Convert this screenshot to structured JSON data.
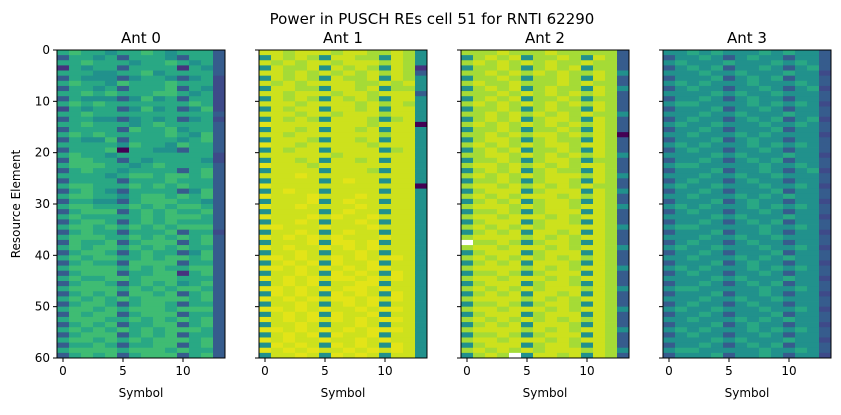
{
  "chart_data": {
    "type": "heatmap",
    "title": "Power in PUSCH REs cell 51 for RNTI 62290",
    "xlabel": "Symbol",
    "ylabel": "Resource Element",
    "x_ticks": [
      0,
      5,
      10
    ],
    "y_ticks": [
      0,
      10,
      20,
      30,
      40,
      50,
      60
    ],
    "xlim": [
      -0.5,
      13.5
    ],
    "ylim": [
      60,
      0
    ],
    "colormap": "viridis",
    "level_colors": [
      "#440154",
      "#46327e",
      "#3e4a89",
      "#365c8d",
      "#21918c",
      "#29a884",
      "#3fbc73",
      "#a5db36",
      "#cde11d",
      "#e3e418"
    ],
    "missing_marker": "x",
    "panels": [
      {
        "title": "Ant 0",
        "rows": [
          "56554556545553",
          "35545355543553",
          "55655545565453",
          "15455355551543",
          "55544556455553",
          "35444345543452",
          "56554655565552",
          "35545355563542",
          "55656555665452",
          "35444346453552",
          "56565555555652",
          "25455346453462",
          "55655555555553",
          "35544345453452",
          "55655545655553",
          "35555365564553",
          "56565555565463",
          "35446355554563",
          "55555465546553",
          "35556055443553",
          "56554555555552",
          "36655354555542",
          "56665545655553",
          "35655455553563",
          "55554566566563",
          "35555355565553",
          "56655565656553",
          "35654355553463",
          "56655456656563",
          "35544356665543",
          "56655565656653",
          "35666356565563",
          "56555556566653",
          "35665356565553",
          "56656565656663",
          "35655355563552",
          "56665565656563",
          "36556356663563",
          "56566565656553",
          "35665356553463",
          "56566556566563",
          "35655366663553",
          "56666565655663",
          "35666355661563",
          "56556656665553",
          "35665356564563",
          "56666565656653",
          "35656366563563",
          "56565656666563",
          "35665356653553",
          "56656566656663",
          "36566356663553",
          "56665565656563",
          "35656355663563",
          "56565656566653",
          "35666356563553",
          "56656565666563",
          "35565355663563",
          "56666566656553",
          "35656356663563"
        ]
      },
      {
        "title": "Ant 1",
        "rows": [
          "88788878877874",
          "48787488774874",
          "87878878887874",
          "48778487874871",
          "88787878787873",
          "48787487784874",
          "87878888778784",
          "48877488784774",
          "88788878878883",
          "48787487874884",
          "88878888787874",
          "48788488784884",
          "88878878887884",
          "48787488874784",
          "98888888878880",
          "48878488784884",
          "88788888887884",
          "48887488784884",
          "98878888878884",
          "48788488884784",
          "88888878888884",
          "48878488784884",
          "98887888888884",
          "48888488874884",
          "88898888888884",
          "48888489884884",
          "98888888888880",
          "48988488884884",
          "98889888988884",
          "48889489884884",
          "98898888988884",
          "48888489884884",
          "98889898898884",
          "48898488984884",
          "99888988898884",
          "48898489884884",
          "98989898889884",
          "48889499894884",
          "98988989898884",
          "48898488984884",
          "99898898989984",
          "48989498894884",
          "99898989899884",
          "48898498984984",
          "98989899898984",
          "48989488994884",
          "99898989989884",
          "49898498984984",
          "98989899898984",
          "48898489894884",
          "99898988989984",
          "48989498894884",
          "98989898989984",
          "48898488984884",
          "99898989899984",
          "48989498894884",
          "98988988989884",
          "49898498984984",
          "98989889898984",
          "48898498984884"
        ]
      },
      {
        "title": "Ant 2",
        "rows": [
          "77787778777773",
          "47878477874873",
          "78787878778773",
          "47787478784773",
          "77878787877874",
          "47787477874873",
          "78778777878773",
          "47878478774874",
          "77787878787873",
          "47878477874773",
          "78787878787873",
          "47787478774873",
          "77878787878774",
          "47878478874873",
          "78787878787873",
          "47787477874873",
          "77878788787870",
          "47887478774873",
          "78787878878873",
          "47878477874873",
          "77887878787874",
          "47787478874773",
          "78878787878873",
          "47878478774873",
          "78787878887874",
          "47787478874873",
          "78878787878773",
          "47888478884874",
          "78787888787873",
          "47878478874873",
          "78887878878874",
          "47787478884873",
          "78878887878873",
          "47888478874873",
          "78787878888874",
          "47878488784873",
          "78888787878873",
          "x7787478874873",
          "78878887878874",
          "47888478884873",
          "78787878787873",
          "47878488874873",
          "78888787878874",
          "47787478884873",
          "78878887878873",
          "47888478874873",
          "78787878887874",
          "47878488784873",
          "78888787878873",
          "47787478874873",
          "78878887878874",
          "47888478884873",
          "78787878787873",
          "47878488874873",
          "78888787878874",
          "47787478884873",
          "78878887878873",
          "47888478874873",
          "78787878887874",
          "4787x488784873"
        ]
      },
      {
        "title": "Ant 3",
        "rows": [
          "44545444545443",
          "34454345443443",
          "45444544454543",
          "34545344543453",
          "44454454445442",
          "34445345453443",
          "45454445444543",
          "34544344543452",
          "44445454454443",
          "34454345443443",
          "45544445454542",
          "34445344543443",
          "44454454445443",
          "34544345453452",
          "45445444544543",
          "34454344453443",
          "44544454544442",
          "34445345443443",
          "45454445454543",
          "34544344543443",
          "44445454445442",
          "34454345453443",
          "45544444544543",
          "34445344543452",
          "44454454454443",
          "34544345443443",
          "45445444544542",
          "34454344453443",
          "44544454545443",
          "34445345443442",
          "45454445454543",
          "34544344543443",
          "44445454445442",
          "34454345453443",
          "45544444544543",
          "34445344543442",
          "44454454454443",
          "34544345443443",
          "45445444544542",
          "34454344453443",
          "44544454545443",
          "34445345443442",
          "45454445454543",
          "34544344543443",
          "44445454445442",
          "34454345453443",
          "45544444544543",
          "34445344543442",
          "44454454454443",
          "34544345443443",
          "45445444544542",
          "34454344453443",
          "44544454545443",
          "34445345443442",
          "45454445454543",
          "34544344543443",
          "44445454445442",
          "34454345453443",
          "45544444544543",
          "34445344543442"
        ]
      }
    ]
  }
}
